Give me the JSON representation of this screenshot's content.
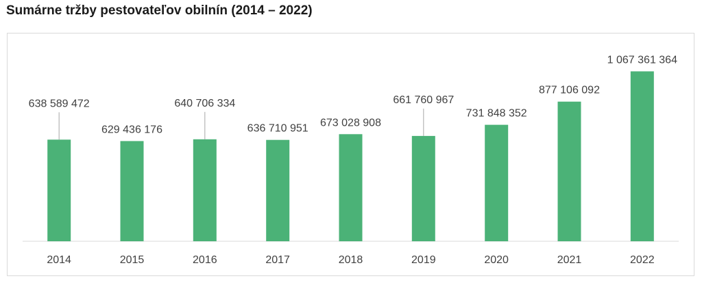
{
  "chart_data": {
    "type": "bar",
    "title": "Sumárne tržby pestovateľov obilnín (2014 – 2022)",
    "categories": [
      "2014",
      "2015",
      "2016",
      "2017",
      "2018",
      "2019",
      "2020",
      "2021",
      "2022"
    ],
    "values": [
      638589472,
      629436176,
      640706334,
      636710951,
      673028908,
      661760967,
      731848352,
      877106092,
      1067361364
    ],
    "value_labels": [
      "638 589 472",
      "629 436 176",
      "640 706 334",
      "636 710 951",
      "673 028 908",
      "661 760 967",
      "731 848 352",
      "877 106 092",
      "1 067 361 364"
    ],
    "xlabel": "",
    "ylabel": "",
    "ylim": [
      0,
      1200000000
    ],
    "grid": false,
    "legend": "none",
    "bar_color": "#4bb277"
  }
}
